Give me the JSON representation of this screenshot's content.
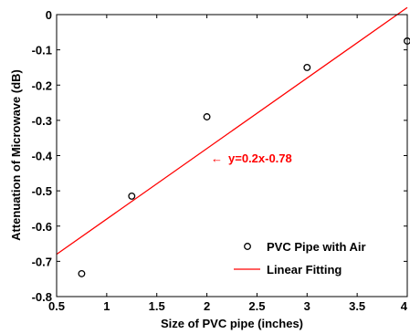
{
  "chart_data": {
    "type": "scatter",
    "title": "",
    "xlabel": "Size of PVC pipe (inches)",
    "ylabel": "Attenuation of Microwave (dB)",
    "xlim": [
      0.5,
      4
    ],
    "ylim": [
      -0.8,
      0
    ],
    "x_ticks": [
      "0.5",
      "1",
      "1.5",
      "2",
      "2.5",
      "3",
      "3.5",
      "4"
    ],
    "y_ticks": [
      "0",
      "-0.1",
      "-0.2",
      "-0.3",
      "-0.4",
      "-0.5",
      "-0.6",
      "-0.7",
      "-0.8"
    ],
    "grid": false,
    "legend_position": "bottom-right",
    "series": [
      {
        "name": "PVC Pipe with Air",
        "kind": "scatter",
        "marker": "open-circle",
        "color": "#000000",
        "x": [
          0.75,
          1.25,
          2,
          3,
          4
        ],
        "y": [
          -0.735,
          -0.515,
          -0.29,
          -0.15,
          -0.075
        ]
      },
      {
        "name": "Linear Fitting",
        "kind": "line",
        "color": "#ff0000",
        "slope": 0.2,
        "intercept": -0.78
      }
    ],
    "annotations": [
      {
        "text": "y=0.2x-0.78",
        "arrow": "←",
        "color": "#ff0000"
      }
    ]
  }
}
